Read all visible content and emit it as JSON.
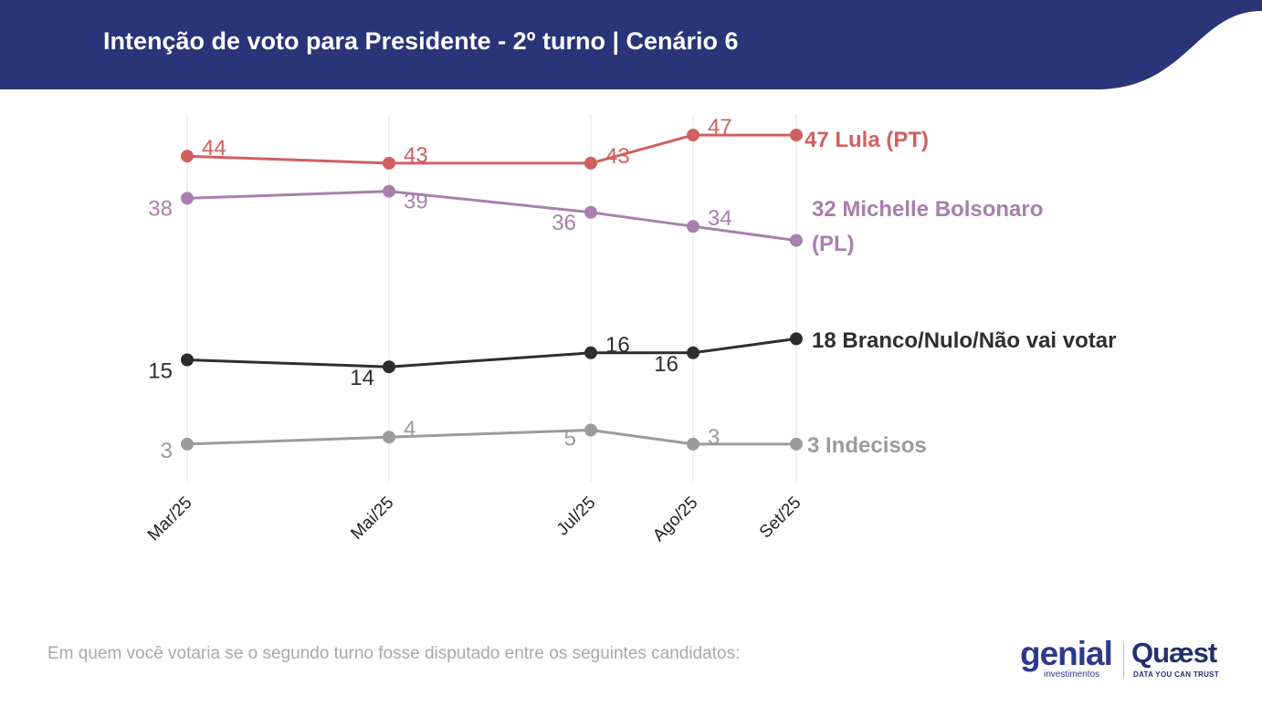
{
  "header": {
    "title": "Intenção de voto para Presidente - 2º turno | Cenário 6",
    "background_color": "#2a3478"
  },
  "footer": {
    "note": "Em quem você votaria se o segundo turno fosse disputado entre os seguintes candidatos:",
    "logos": {
      "genial_text": "genial",
      "genial_subtext": "investimentos",
      "quaest_text": "Quæst",
      "quaest_subtext": "DATA YOU CAN TRUST"
    }
  },
  "chart_data": {
    "type": "line",
    "title": "",
    "xlabel": "",
    "ylabel": "",
    "categories": [
      "Mar/25",
      "Mai/25",
      "Jul/25",
      "Ago/25",
      "Set/25"
    ],
    "grid": "vertical",
    "legend": "end-of-line labels",
    "series": [
      {
        "name": "Lula (PT)",
        "end_label": "47 Lula (PT)",
        "color": "#d0605f",
        "values": [
          44,
          43,
          43,
          47,
          47
        ]
      },
      {
        "name": "Michelle Bolsonaro (PL)",
        "end_label_lines": [
          "32 Michelle Bolsonaro",
          "(PL)"
        ],
        "color": "#a87fad",
        "values": [
          38,
          39,
          36,
          34,
          32
        ]
      },
      {
        "name": "Branco/Nulo/Não vai votar",
        "end_label": "18 Branco/Nulo/Não vai votar",
        "color": "#2e2e2e",
        "values": [
          15,
          14,
          16,
          16,
          18
        ]
      },
      {
        "name": "Indecisos",
        "end_label": "3 Indecisos",
        "color": "#9b9b9b",
        "values": [
          3,
          4,
          5,
          3,
          3
        ]
      }
    ]
  }
}
